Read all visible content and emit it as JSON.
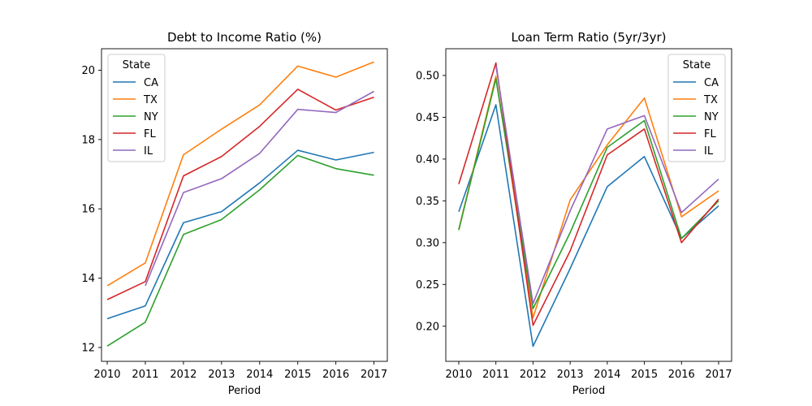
{
  "chart_data": [
    {
      "type": "line",
      "title": "Debt to Income Ratio (%)",
      "xlabel": "Period",
      "ylabel": "",
      "x": [
        2010,
        2011,
        2012,
        2013,
        2014,
        2015,
        2016,
        2017
      ],
      "xlim": [
        2009.85,
        2017.35
      ],
      "ylim": [
        11.6,
        20.62
      ],
      "yticks": [
        12,
        14,
        16,
        18,
        20
      ],
      "legend": {
        "title": "State",
        "placement": "upper left"
      },
      "series": [
        {
          "name": "CA",
          "color": "#1f77b4",
          "values": [
            12.83,
            13.2,
            15.6,
            15.92,
            16.75,
            17.69,
            17.41,
            17.63
          ]
        },
        {
          "name": "TX",
          "color": "#ff7f0e",
          "values": [
            13.78,
            14.44,
            17.56,
            18.3,
            19.0,
            20.12,
            19.8,
            20.24
          ]
        },
        {
          "name": "NY",
          "color": "#2ca02c",
          "values": [
            12.04,
            12.73,
            15.26,
            15.69,
            16.55,
            17.54,
            17.16,
            16.97
          ]
        },
        {
          "name": "FL",
          "color": "#d62728",
          "values": [
            13.38,
            13.9,
            16.95,
            17.51,
            18.38,
            19.45,
            18.85,
            19.22
          ]
        },
        {
          "name": "IL",
          "color": "#9467bd",
          "values": [
            null,
            13.78,
            16.47,
            16.87,
            17.6,
            18.87,
            18.78,
            19.39
          ]
        }
      ]
    },
    {
      "type": "line",
      "title": "Loan Term Ratio (5yr/3yr)",
      "xlabel": "Period",
      "ylabel": "",
      "x": [
        2010,
        2011,
        2012,
        2013,
        2014,
        2015,
        2016,
        2017
      ],
      "xlim": [
        2009.65,
        2017.35
      ],
      "ylim": [
        0.158,
        0.532
      ],
      "yticks": [
        0.2,
        0.25,
        0.3,
        0.35,
        0.4,
        0.45,
        0.5
      ],
      "legend": {
        "title": "State",
        "placement": "upper right"
      },
      "series": [
        {
          "name": "CA",
          "color": "#1f77b4",
          "values": [
            0.337,
            0.465,
            0.176,
            0.269,
            0.367,
            0.403,
            0.305,
            0.344
          ]
        },
        {
          "name": "TX",
          "color": "#ff7f0e",
          "values": [
            0.316,
            0.499,
            0.21,
            0.351,
            0.417,
            0.473,
            0.331,
            0.362
          ]
        },
        {
          "name": "NY",
          "color": "#2ca02c",
          "values": [
            0.315,
            0.496,
            0.221,
            0.312,
            0.414,
            0.446,
            0.305,
            0.35
          ]
        },
        {
          "name": "FL",
          "color": "#d62728",
          "values": [
            0.37,
            0.515,
            0.201,
            0.29,
            0.405,
            0.436,
            0.3,
            0.352
          ]
        },
        {
          "name": "IL",
          "color": "#9467bd",
          "values": [
            null,
            0.512,
            0.227,
            0.338,
            0.436,
            0.452,
            0.336,
            0.376
          ]
        }
      ]
    }
  ]
}
